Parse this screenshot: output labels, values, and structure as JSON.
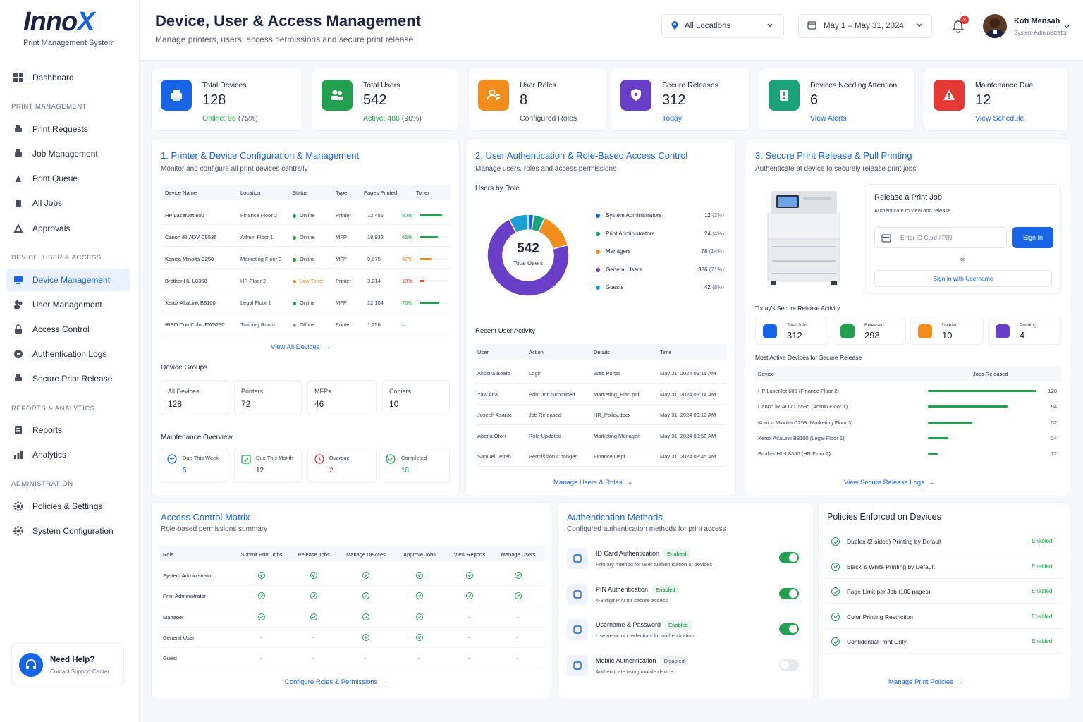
{
  "brand": {
    "name_a": "Inno",
    "name_b": "X",
    "subtitle": "Print Management System"
  },
  "colors": {
    "primary": "#1765e6",
    "green": "#22a050",
    "orange": "#f28c1c",
    "purple": "#6a3fc8",
    "red": "#e53935",
    "teal": "#1aa37a"
  },
  "sidebar": {
    "dashboard": "Dashboard",
    "sec1": "PRINT MANAGEMENT",
    "print_requests": "Print Requests",
    "job_management": "Job Management",
    "print_queue": "Print Queue",
    "all_jobs": "All Jobs",
    "approvals": "Approvals",
    "sec2": "DEVICE, USER & ACCESS",
    "device_management": "Device Management",
    "user_management": "User Management",
    "access_control": "Access Control",
    "auth_logs": "Authentication Logs",
    "secure_print": "Secure Print Release",
    "sec3": "REPORTS & ANALYTICS",
    "reports": "Reports",
    "analytics": "Analytics",
    "sec4": "ADMINISTRATION",
    "policies": "Policies & Settings",
    "sys_config": "System Configuration",
    "help_title": "Need Help?",
    "help_sub": "Contact Support Center"
  },
  "header": {
    "title": "Device, User & Access Management",
    "subtitle": "Manage printers, users, access permissions and secure print release",
    "location": "All Locations",
    "date_range": "May 1 – May 31, 2024",
    "notifications": "8",
    "user_name": "Kofi Mensah",
    "user_role": "System Administrator"
  },
  "stats": [
    {
      "label": "Total Devices",
      "value": "128",
      "sub_a": "Online: 96",
      "sub_b": " (75%)"
    },
    {
      "label": "Total Users",
      "value": "542",
      "sub_a": "Active: 486",
      "sub_b": " (90%)"
    },
    {
      "label": "User Roles",
      "value": "8",
      "sub_a": "",
      "sub_b": "Configured Roles"
    },
    {
      "label": "Secure Releases",
      "value": "312",
      "sub_a": "Today",
      "sub_b": ""
    },
    {
      "label": "Devices Needing Attention",
      "value": "6",
      "sub_a": "View Alerts",
      "sub_b": ""
    },
    {
      "label": "Maintenance Due",
      "value": "12",
      "sub_a": "View Schedule",
      "sub_b": ""
    }
  ],
  "printers": {
    "title": "1.  Printer & Device Configuration & Management",
    "subtitle": "Monitor and configure all print devices centrally",
    "headers": [
      "Device Name",
      "Location",
      "Status",
      "Type",
      "Pages Printed",
      "Toner"
    ],
    "rows": [
      {
        "name": "HP LaserJet 600",
        "loc": "Finance Floor 2",
        "status": "Online",
        "type": "Printer",
        "pages": "12,456",
        "toner": "80%"
      },
      {
        "name": "Canon iR-ADV C5535",
        "loc": "Admin Floor 1",
        "status": "Online",
        "type": "MFP",
        "pages": "18,932",
        "toner": "65%"
      },
      {
        "name": "Konica Minolta C258",
        "loc": "Marketing Floor 3",
        "status": "Online",
        "type": "MFP",
        "pages": "9,875",
        "toner": "42%"
      },
      {
        "name": "Brother HL-L8360",
        "loc": "HR Floor 2",
        "status": "Low Toner",
        "type": "Printer",
        "pages": "3,214",
        "toner": "18%"
      },
      {
        "name": "Xerox AltaLink B8100",
        "loc": "Legal Floor 1",
        "status": "Online",
        "type": "MFP",
        "pages": "22,104",
        "toner": "70%"
      },
      {
        "name": "RISO ComColor FW5230",
        "loc": "Training Room",
        "status": "Offline",
        "type": "Printer",
        "pages": "1,256",
        "toner": "–"
      }
    ],
    "toner_levels": [
      0.8,
      0.65,
      0.42,
      0.18,
      0.7,
      0
    ],
    "view_all": "View All Devices",
    "groups_title": "Device Groups",
    "groups": [
      {
        "label": "All Devices",
        "value": "128"
      },
      {
        "label": "Printers",
        "value": "72"
      },
      {
        "label": "MFPs",
        "value": "46"
      },
      {
        "label": "Copiers",
        "value": "10"
      }
    ],
    "maint_title": "Maintenance Overview",
    "maint": [
      {
        "label": "Due This Week",
        "value": "5"
      },
      {
        "label": "Due This Month",
        "value": "12"
      },
      {
        "label": "Overdue",
        "value": "2"
      },
      {
        "label": "Completed",
        "value": "18"
      }
    ]
  },
  "users": {
    "title": "2.  User Authentication & Role-Based Access Control",
    "subtitle": "Manage users, roles and access permissions",
    "by_role": "Users by Role",
    "total": "542",
    "total_label": "Total Users",
    "roles": [
      {
        "name": "System Administrators",
        "count": "12",
        "pct": "(2%)",
        "color": "#1765e6"
      },
      {
        "name": "Print Administrators",
        "count": "24",
        "pct": "(4%)",
        "color": "#1aa37a"
      },
      {
        "name": "Managers",
        "count": "78",
        "pct": "(14%)",
        "color": "#f28c1c"
      },
      {
        "name": "General Users",
        "count": "386",
        "pct": "(71%)",
        "color": "#6a3fc8"
      },
      {
        "name": "Guests",
        "count": "42",
        "pct": "(8%)",
        "color": "#1e9fd6"
      }
    ],
    "activity_title": "Recent User Activity",
    "activity_headers": [
      "User",
      "Action",
      "Details",
      "Time"
    ],
    "activity": [
      [
        "Akosua Boafo",
        "Login",
        "Web Portal",
        "May 31, 2024 09:15 AM"
      ],
      [
        "Yaw Atta",
        "Print Job Submitted",
        "Marketing_Plan.pdf",
        "May 31, 2024 09:14 AM"
      ],
      [
        "Joseph Asante",
        "Job Released",
        "HR_Policy.docx",
        "May 31, 2024 09:12 AM"
      ],
      [
        "Abena Ofori",
        "Role Updated",
        "Marketing Manager",
        "May 31, 2024 08:50 AM"
      ],
      [
        "Samuel Tetteh",
        "Permission Changed",
        "Finance Dept",
        "May 31, 2024 08:45 AM"
      ]
    ],
    "manage_link": "Manage Users & Roles"
  },
  "secure": {
    "title": "3.  Secure Print Release & Pull Printing",
    "subtitle": "Authenticate at device to securely release print jobs",
    "release_title": "Release a Print Job",
    "release_sub": "Authenticate to view and release",
    "input_placeholder": "Enter ID Card / PIN",
    "sign_in": "Sign In",
    "or": "or",
    "sign_username": "Sign in with Username",
    "activity_title": "Today's Secure Release Activity",
    "activity": [
      {
        "label": "Total Jobs",
        "value": "312"
      },
      {
        "label": "Released",
        "value": "298"
      },
      {
        "label": "Deleted",
        "value": "10"
      },
      {
        "label": "Pending",
        "value": "4"
      }
    ],
    "top_title": "Most Active Devices for Secure Release",
    "top_headers": [
      "Device",
      "Jobs Released"
    ],
    "top": [
      {
        "name": "HP LaserJet 600 (Finance Floor 2)",
        "value": "128",
        "n": 128
      },
      {
        "name": "Canon iR-ADV C5535 (Admin Floor 1)",
        "value": "94",
        "n": 94
      },
      {
        "name": "Konica Minolta C258 (Marketing Floor 3)",
        "value": "52",
        "n": 52
      },
      {
        "name": "Xerox AltaLink B8100 (Legal Floor 1)",
        "value": "24",
        "n": 24
      },
      {
        "name": "Brother HL-L8360 (HR Floor 2)",
        "value": "12",
        "n": 12
      }
    ],
    "logs_link": "View Secure Release Logs"
  },
  "matrix": {
    "title": "Access Control Matrix",
    "subtitle": "Role-based permissions summary",
    "headers": [
      "Role",
      "Submit Print Jobs",
      "Release Jobs",
      "Manage Devices",
      "Approve Jobs",
      "View Reports",
      "Manage Users"
    ],
    "rows": [
      {
        "role": "System Administrator",
        "perms": [
          1,
          1,
          1,
          1,
          1,
          1
        ]
      },
      {
        "role": "Print Administrator",
        "perms": [
          1,
          1,
          1,
          1,
          1,
          1
        ]
      },
      {
        "role": "Manager",
        "perms": [
          1,
          1,
          1,
          1,
          0,
          0
        ]
      },
      {
        "role": "General User",
        "perms": [
          0,
          0,
          1,
          1,
          0,
          0
        ]
      },
      {
        "role": "Guest",
        "perms": [
          0,
          0,
          0,
          0,
          0,
          0
        ]
      }
    ],
    "dash": "–",
    "link": "Configure Roles & Permissions"
  },
  "auth": {
    "title": "Authentication Methods",
    "subtitle": "Configured authentication methods for print access",
    "methods": [
      {
        "name": "ID Card Authentication",
        "state": "Enabled",
        "desc": "Primary method for user authentication at devices",
        "on": true
      },
      {
        "name": "PIN Authentication",
        "state": "Enabled",
        "desc": "4-8 digit PIN for secure access",
        "on": true
      },
      {
        "name": "Username & Password",
        "state": "Enabled",
        "desc": "Use network credentials for authentication",
        "on": true
      },
      {
        "name": "Mobile Authentication",
        "state": "Disabled",
        "desc": "Authenticate using mobile device",
        "on": false
      }
    ]
  },
  "policies": {
    "title": "Policies Enforced on Devices",
    "items": [
      {
        "name": "Duplex (2-sided) Printing by Default",
        "state": "Enabled"
      },
      {
        "name": "Black & White Printing by Default",
        "state": "Enabled"
      },
      {
        "name": "Page Limit per Job (100 pages)",
        "state": "Enabled"
      },
      {
        "name": "Color Printing Restriction",
        "state": "Enabled"
      },
      {
        "name": "Confidential Print Only",
        "state": "Enabled"
      }
    ],
    "link": "Manage Print Policies"
  }
}
